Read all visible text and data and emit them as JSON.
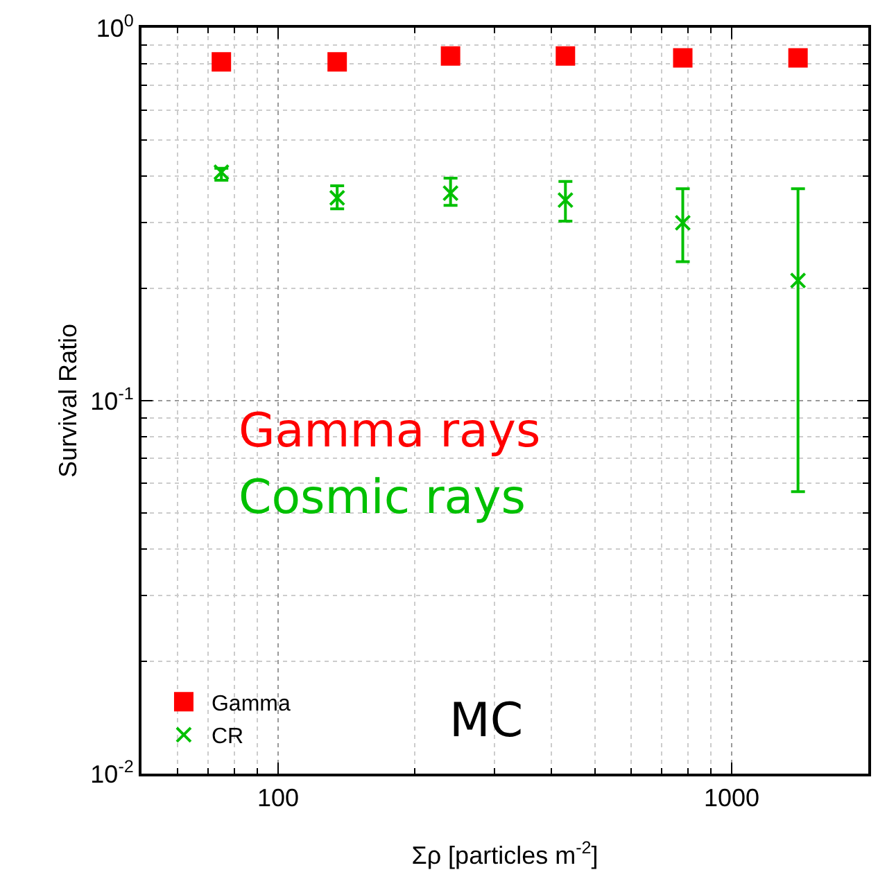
{
  "chart_data": {
    "type": "scatter",
    "xlabel": "Σρ [particles m$^{-2}$]",
    "ylabel": "Survival Ratio",
    "log": "xy",
    "grid": true,
    "legend": "bottom left",
    "x": [
      75,
      135,
      240,
      430,
      780,
      1400
    ],
    "xlim": [
      50,
      2000
    ],
    "xticks": [
      100,
      1000
    ],
    "ylim": [
      0.01,
      1
    ],
    "yticks": [
      {
        "value": 0.01,
        "label": "10$^{-2}$"
      },
      {
        "value": 0.1,
        "label": "10$^{-1}$"
      },
      {
        "value": 1,
        "label": "10$^{0}$"
      }
    ],
    "series": [
      {
        "name": "Gamma",
        "color": "#ff0000",
        "marker": "square",
        "values": [
          0.81,
          0.81,
          0.84,
          0.84,
          0.83,
          0.83
        ]
      },
      {
        "name": "CR",
        "color": "#00c000",
        "marker": "cross",
        "values": [
          0.41,
          0.35,
          0.36,
          0.345,
          0.3,
          0.21
        ],
        "errors": [
          [
            0.39,
            0.42
          ],
          [
            0.327,
            0.377
          ],
          [
            0.334,
            0.395
          ],
          [
            0.303,
            0.387
          ],
          [
            0.236,
            0.37
          ],
          [
            0.057,
            0.37
          ]
        ]
      }
    ],
    "annotations": [
      "Gamma rays",
      "Cosmic rays",
      "MC"
    ]
  }
}
